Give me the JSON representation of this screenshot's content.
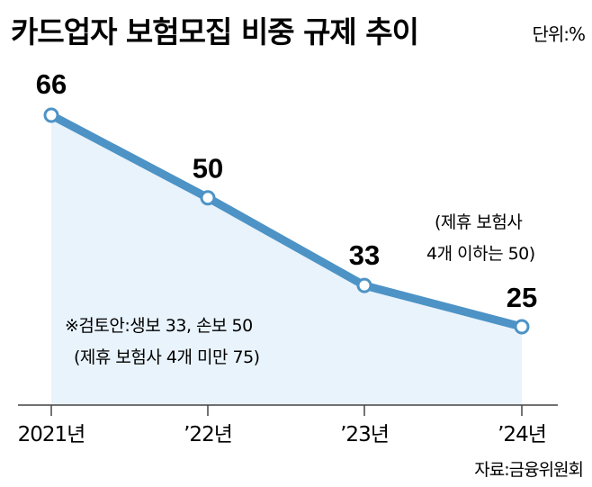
{
  "chart_data": {
    "type": "line",
    "title": "카드업자 보험모집 비중 규제 추이",
    "unit": "단위:%",
    "categories": [
      "2021년",
      "’22년",
      "’23년",
      "’24년"
    ],
    "values": [
      66,
      50,
      33,
      25
    ],
    "ylim": [
      0,
      72
    ],
    "annotations": {
      "right_line1": "(제휴 보험사",
      "right_line2": "4개 이하는 50)",
      "note_line1": "※검토안:생보 33, 손보 50",
      "note_line2": "(제휴 보험사 4개 미만 75)"
    },
    "source": "자료:금융위원회",
    "colors": {
      "line": "#4d93c6",
      "fill": "#e9f3fb",
      "axis": "#444444"
    }
  }
}
